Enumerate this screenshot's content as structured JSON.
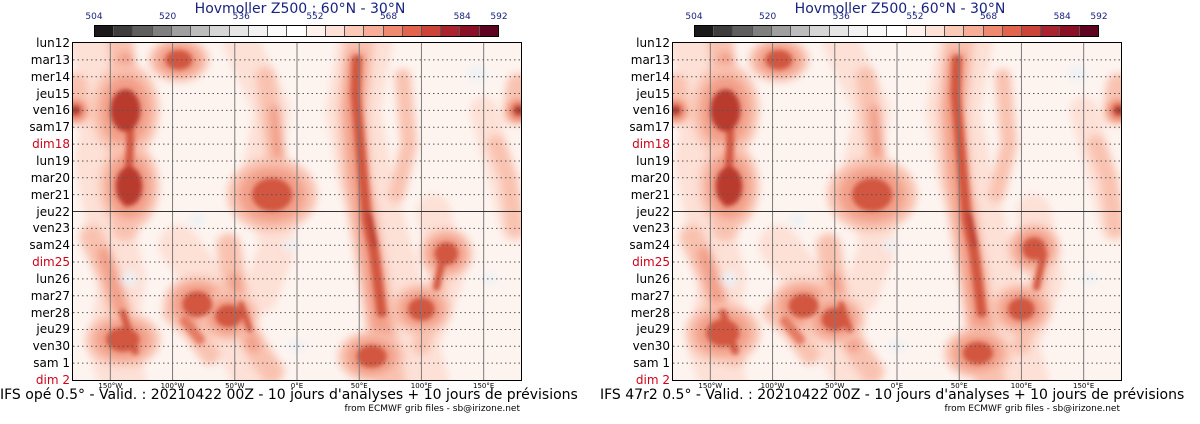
{
  "chart_data": [
    {
      "type": "heatmap",
      "title": "Hovmoller Z500 : 60°N - 30°N",
      "footer": "IFS opé 0.5° - Valid. : 20210422 00Z - 10 jours d'analyses + 10 jours de prévisions",
      "credit": "from ECMWF grib files - sb@irizone.net",
      "colorbar": {
        "labels": [
          {
            "text": "504",
            "value": 504
          },
          {
            "text": "520",
            "value": 520
          },
          {
            "text": "536",
            "value": 536
          },
          {
            "text": "552",
            "value": 552
          },
          {
            "text": "568",
            "value": 568
          },
          {
            "text": "584",
            "value": 584
          },
          {
            "text": "592",
            "value": 592
          }
        ],
        "colors": [
          "#1a1a1a",
          "#3d3d3d",
          "#5e5e5e",
          "#7f7f7f",
          "#9f9f9f",
          "#bcbcbc",
          "#d6d6d6",
          "#e6e6e6",
          "#f2f2f2",
          "#fafafa",
          "#ffffff",
          "#fff1ec",
          "#fde0d6",
          "#fbc9b8",
          "#f7ad97",
          "#ef8a71",
          "#e2644f",
          "#cc4338",
          "#aa2430",
          "#8a1028",
          "#5e0320"
        ]
      },
      "y_labels": [
        {
          "text": "lun12",
          "sunday": false
        },
        {
          "text": "mar13",
          "sunday": false
        },
        {
          "text": "mer14",
          "sunday": false
        },
        {
          "text": "jeu15",
          "sunday": false
        },
        {
          "text": "ven16",
          "sunday": false
        },
        {
          "text": "sam17",
          "sunday": false
        },
        {
          "text": "dim18",
          "sunday": true
        },
        {
          "text": "lun19",
          "sunday": false
        },
        {
          "text": "mar20",
          "sunday": false
        },
        {
          "text": "mer21",
          "sunday": false
        },
        {
          "text": "jeu22",
          "sunday": false
        },
        {
          "text": "ven23",
          "sunday": false
        },
        {
          "text": "sam24",
          "sunday": false
        },
        {
          "text": "dim25",
          "sunday": true
        },
        {
          "text": "lun26",
          "sunday": false
        },
        {
          "text": "mar27",
          "sunday": false
        },
        {
          "text": "mer28",
          "sunday": false
        },
        {
          "text": "jeu29",
          "sunday": false
        },
        {
          "text": "ven30",
          "sunday": false
        },
        {
          "text": "sam 1",
          "sunday": false
        },
        {
          "text": "dim 2",
          "sunday": true
        }
      ],
      "x_labels": [
        {
          "text": "150°W",
          "lon": -150
        },
        {
          "text": "100°W",
          "lon": -100
        },
        {
          "text": "50°W",
          "lon": -50
        },
        {
          "text": "0°E",
          "lon": 0
        },
        {
          "text": "50°E",
          "lon": 50
        },
        {
          "text": "100°E",
          "lon": 100
        },
        {
          "text": "150°E",
          "lon": 150
        }
      ],
      "xlim": [
        -180,
        180
      ],
      "analysis_end_label": "jeu22",
      "blobs": [
        {
          "lon": -138,
          "day": 4.0,
          "w": 9,
          "h": 2.8,
          "v": 2
        },
        {
          "lon": -135,
          "day": 8.5,
          "w": 8,
          "h": 2.6,
          "v": 2
        },
        {
          "lon": -140,
          "day": 17.6,
          "w": 10,
          "h": 1.6,
          "v": 1
        },
        {
          "lon": -95,
          "day": 1.0,
          "w": 8,
          "h": 1.3,
          "v": 1
        },
        {
          "lon": -80,
          "day": 15.5,
          "w": 9,
          "h": 1.7,
          "v": 1
        },
        {
          "lon": -55,
          "day": 16.2,
          "w": 8,
          "h": 1.5,
          "v": 1
        },
        {
          "lon": -20,
          "day": 9.0,
          "w": 12,
          "h": 2.2,
          "v": 1
        },
        {
          "lon": 100,
          "day": 15.8,
          "w": 8,
          "h": 1.5,
          "v": 1
        },
        {
          "lon": 120,
          "day": 12.5,
          "w": 7,
          "h": 1.5,
          "v": 1
        },
        {
          "lon": 60,
          "day": 18.6,
          "w": 9,
          "h": 1.5,
          "v": 1
        }
      ]
    },
    {
      "type": "heatmap",
      "title": "Hovmoller Z500 : 60°N - 30°N",
      "footer": "IFS 47r2 0.5° - Valid. : 20210422 00Z - 10 jours d'analyses + 10 jours de prévisions",
      "credit": "from ECMWF grib files - sb@irizone.net",
      "colorbar": {
        "labels": [
          {
            "text": "504",
            "value": 504
          },
          {
            "text": "520",
            "value": 520
          },
          {
            "text": "536",
            "value": 536
          },
          {
            "text": "552",
            "value": 552
          },
          {
            "text": "568",
            "value": 568
          },
          {
            "text": "584",
            "value": 584
          },
          {
            "text": "592",
            "value": 592
          }
        ],
        "colors": [
          "#1a1a1a",
          "#3d3d3d",
          "#5e5e5e",
          "#7f7f7f",
          "#9f9f9f",
          "#bcbcbc",
          "#d6d6d6",
          "#e6e6e6",
          "#f2f2f2",
          "#fafafa",
          "#ffffff",
          "#fff1ec",
          "#fde0d6",
          "#fbc9b8",
          "#f7ad97",
          "#ef8a71",
          "#e2644f",
          "#cc4338",
          "#aa2430",
          "#8a1028",
          "#5e0320"
        ]
      },
      "y_labels": [
        {
          "text": "lun12",
          "sunday": false
        },
        {
          "text": "mar13",
          "sunday": false
        },
        {
          "text": "mer14",
          "sunday": false
        },
        {
          "text": "jeu15",
          "sunday": false
        },
        {
          "text": "ven16",
          "sunday": false
        },
        {
          "text": "sam17",
          "sunday": false
        },
        {
          "text": "dim18",
          "sunday": true
        },
        {
          "text": "lun19",
          "sunday": false
        },
        {
          "text": "mar20",
          "sunday": false
        },
        {
          "text": "mer21",
          "sunday": false
        },
        {
          "text": "jeu22",
          "sunday": false
        },
        {
          "text": "ven23",
          "sunday": false
        },
        {
          "text": "sam24",
          "sunday": false
        },
        {
          "text": "dim25",
          "sunday": true
        },
        {
          "text": "lun26",
          "sunday": false
        },
        {
          "text": "mar27",
          "sunday": false
        },
        {
          "text": "mer28",
          "sunday": false
        },
        {
          "text": "jeu29",
          "sunday": false
        },
        {
          "text": "ven30",
          "sunday": false
        },
        {
          "text": "sam 1",
          "sunday": false
        },
        {
          "text": "dim 2",
          "sunday": true
        }
      ],
      "x_labels": [
        {
          "text": "150°W",
          "lon": -150
        },
        {
          "text": "100°W",
          "lon": -100
        },
        {
          "text": "50°W",
          "lon": -50
        },
        {
          "text": "0°E",
          "lon": 0
        },
        {
          "text": "50°E",
          "lon": 50
        },
        {
          "text": "100°E",
          "lon": 100
        },
        {
          "text": "150°E",
          "lon": 150
        }
      ],
      "xlim": [
        -180,
        180
      ],
      "analysis_end_label": "jeu22",
      "blobs": [
        {
          "lon": -138,
          "day": 4.0,
          "w": 9,
          "h": 2.8,
          "v": 2
        },
        {
          "lon": -135,
          "day": 8.5,
          "w": 8,
          "h": 2.6,
          "v": 2
        },
        {
          "lon": -140,
          "day": 17.2,
          "w": 10,
          "h": 1.8,
          "v": 1
        },
        {
          "lon": -95,
          "day": 1.0,
          "w": 8,
          "h": 1.3,
          "v": 1
        },
        {
          "lon": -75,
          "day": 15.6,
          "w": 9,
          "h": 1.6,
          "v": 1
        },
        {
          "lon": -50,
          "day": 16.4,
          "w": 8,
          "h": 1.5,
          "v": 1
        },
        {
          "lon": -20,
          "day": 9.0,
          "w": 12,
          "h": 2.2,
          "v": 1
        },
        {
          "lon": 100,
          "day": 15.8,
          "w": 8,
          "h": 1.5,
          "v": 1
        },
        {
          "lon": 110,
          "day": 12.2,
          "w": 7,
          "h": 1.5,
          "v": 1
        },
        {
          "lon": 65,
          "day": 18.4,
          "w": 9,
          "h": 1.5,
          "v": 1
        }
      ]
    }
  ]
}
